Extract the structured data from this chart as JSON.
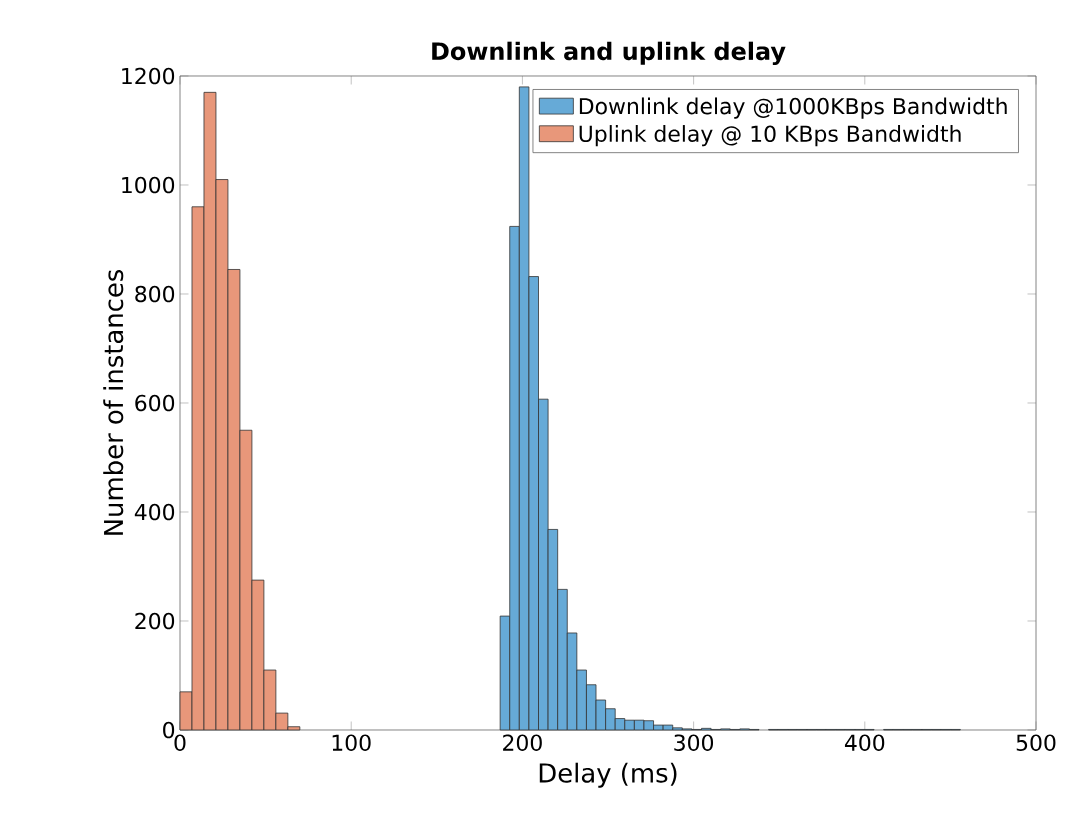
{
  "chart_data": {
    "type": "bar",
    "title": "Downlink and uplink delay",
    "xlabel": "Delay (ms)",
    "ylabel": "Number of instances",
    "xlim": [
      0,
      500
    ],
    "ylim": [
      0,
      1200
    ],
    "xticks": [
      0,
      100,
      200,
      300,
      400,
      500
    ],
    "yticks": [
      0,
      200,
      400,
      600,
      800,
      1000,
      1200
    ],
    "legend": "top right",
    "series": [
      {
        "name": "Downlink delay @1000KBps Bandwidth",
        "color": "#66aad7",
        "x": [
          189.8,
          195.4,
          201,
          206.6,
          212.2,
          217.8,
          223.4,
          229,
          234.6,
          240.2,
          245.8,
          251.4,
          257,
          262.6,
          268.2,
          273.8,
          279.4,
          285,
          290.6,
          296.2,
          301.8,
          307.4,
          313,
          318.6,
          324.2,
          329.8,
          335.4,
          341,
          346.6,
          352.2,
          357.8,
          363.4,
          369,
          374.6,
          380.2,
          385.8,
          391.4,
          397,
          402.6,
          408.2,
          413.8,
          419.4,
          425,
          430.6,
          436.2,
          441.8,
          447.4,
          453
        ],
        "values": [
          209,
          924,
          1180,
          832,
          607,
          368,
          258,
          178,
          110,
          83,
          55,
          39,
          21,
          18,
          18,
          17,
          9,
          9,
          4,
          2,
          1,
          3,
          1,
          2,
          1,
          2,
          1,
          null,
          1,
          1,
          1,
          1,
          1,
          1,
          1,
          1,
          1,
          1,
          1,
          null,
          1,
          1,
          1,
          1,
          1,
          1,
          1,
          1
        ]
      },
      {
        "name": "Uplink delay @ 10 KBps Bandwidth",
        "color": "#e8977a",
        "x": [
          3.5,
          10.5,
          17.5,
          24.5,
          31.5,
          38.5,
          45.5,
          52.5,
          59.5,
          66.5
        ],
        "values": [
          70,
          960,
          1170,
          1010,
          845,
          550,
          275,
          110,
          31,
          6
        ]
      }
    ]
  }
}
